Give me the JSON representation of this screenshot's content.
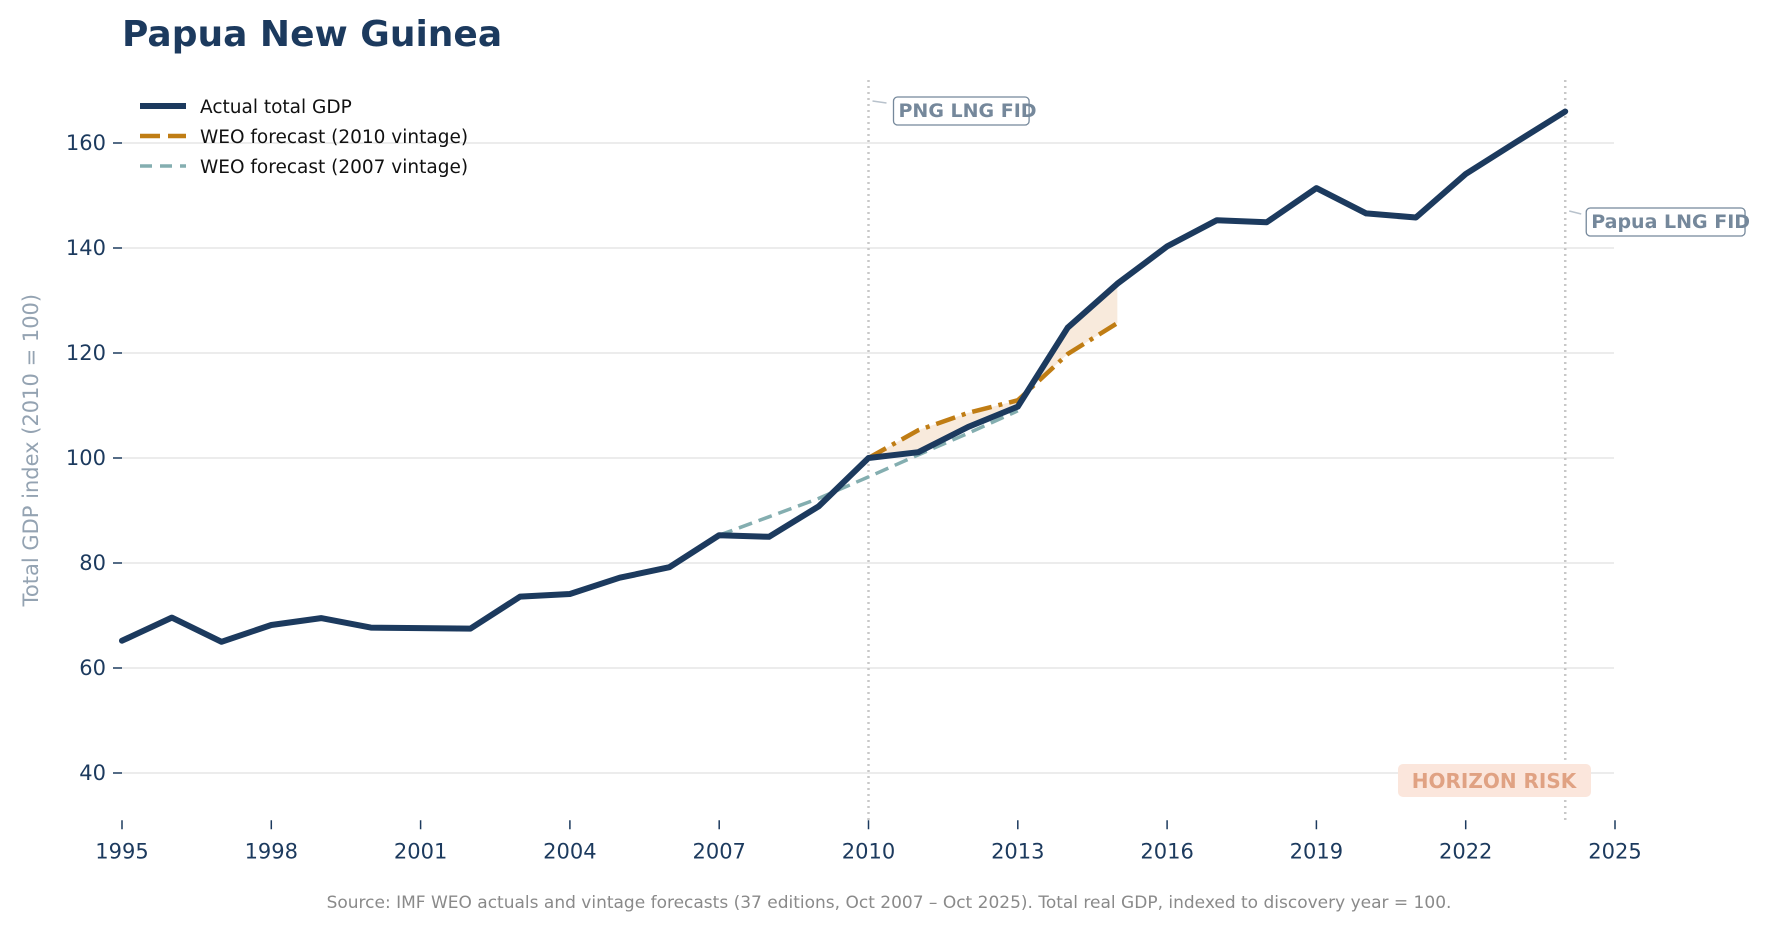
{
  "title": "Papua New Guinea",
  "source": "Source: IMF WEO actuals and vintage forecasts (37 editions, Oct 2007 – Oct 2025). Total real GDP, indexed to discovery year = 100.",
  "colors": {
    "actual": "#1c3a5e",
    "forecast_2010": "#c07d14",
    "forecast_2007": "#84aeb0",
    "grid": "#e6e6e6",
    "vline": "#c8c8c8",
    "annotation": "#75889b",
    "risk_text": "#e0a283",
    "risk_bg": "#fbe6dc",
    "fill": "#f3dcc4"
  },
  "chart_data": {
    "type": "line",
    "title": "Papua New Guinea",
    "xlabel": "",
    "ylabel": "Total GDP index (2010 = 100)",
    "xlim": [
      1995,
      2025
    ],
    "ylim": [
      31,
      172
    ],
    "x_ticks": [
      1995,
      1998,
      2001,
      2004,
      2007,
      2010,
      2013,
      2016,
      2019,
      2022,
      2025
    ],
    "y_ticks": [
      40,
      60,
      80,
      100,
      120,
      140,
      160
    ],
    "grid": "horizontal",
    "legend_position": "top-left",
    "series": [
      {
        "name": "Actual total GDP",
        "style": "solid",
        "x": [
          1995,
          1996,
          1997,
          1998,
          1999,
          2000,
          2001,
          2002,
          2003,
          2004,
          2005,
          2006,
          2007,
          2008,
          2009,
          2010,
          2011,
          2012,
          2013,
          2014,
          2015,
          2016,
          2017,
          2018,
          2019,
          2020,
          2021,
          2022,
          2023,
          2024
        ],
        "values": [
          65.2,
          69.6,
          65.0,
          68.2,
          69.5,
          67.7,
          67.6,
          67.5,
          73.6,
          74.1,
          77.2,
          79.2,
          85.3,
          85.0,
          90.8,
          100.0,
          101.1,
          105.9,
          109.8,
          124.8,
          133.2,
          140.3,
          145.3,
          144.9,
          151.4,
          146.6,
          145.8,
          154.1,
          160.1,
          166.0
        ]
      },
      {
        "name": "WEO forecast (2010 vintage)",
        "style": "dashdot",
        "x": [
          2010,
          2011,
          2012,
          2013,
          2014,
          2015
        ],
        "values": [
          100.0,
          105.3,
          108.6,
          111.0,
          119.8,
          125.7
        ]
      },
      {
        "name": "WEO forecast (2007 vintage)",
        "style": "dashed",
        "x": [
          2007,
          2008,
          2009,
          2010,
          2011,
          2012,
          2013
        ],
        "values": [
          85.3,
          88.8,
          92.3,
          96.4,
          100.6,
          104.7,
          109.0
        ]
      }
    ],
    "vertical_markers": [
      {
        "x": 2010,
        "label": "PNG LNG FID"
      },
      {
        "x": 2024,
        "label": "Papua LNG FID"
      }
    ],
    "annotations": [
      {
        "text": "HORIZON RISK",
        "position": "bottom-right"
      }
    ]
  }
}
